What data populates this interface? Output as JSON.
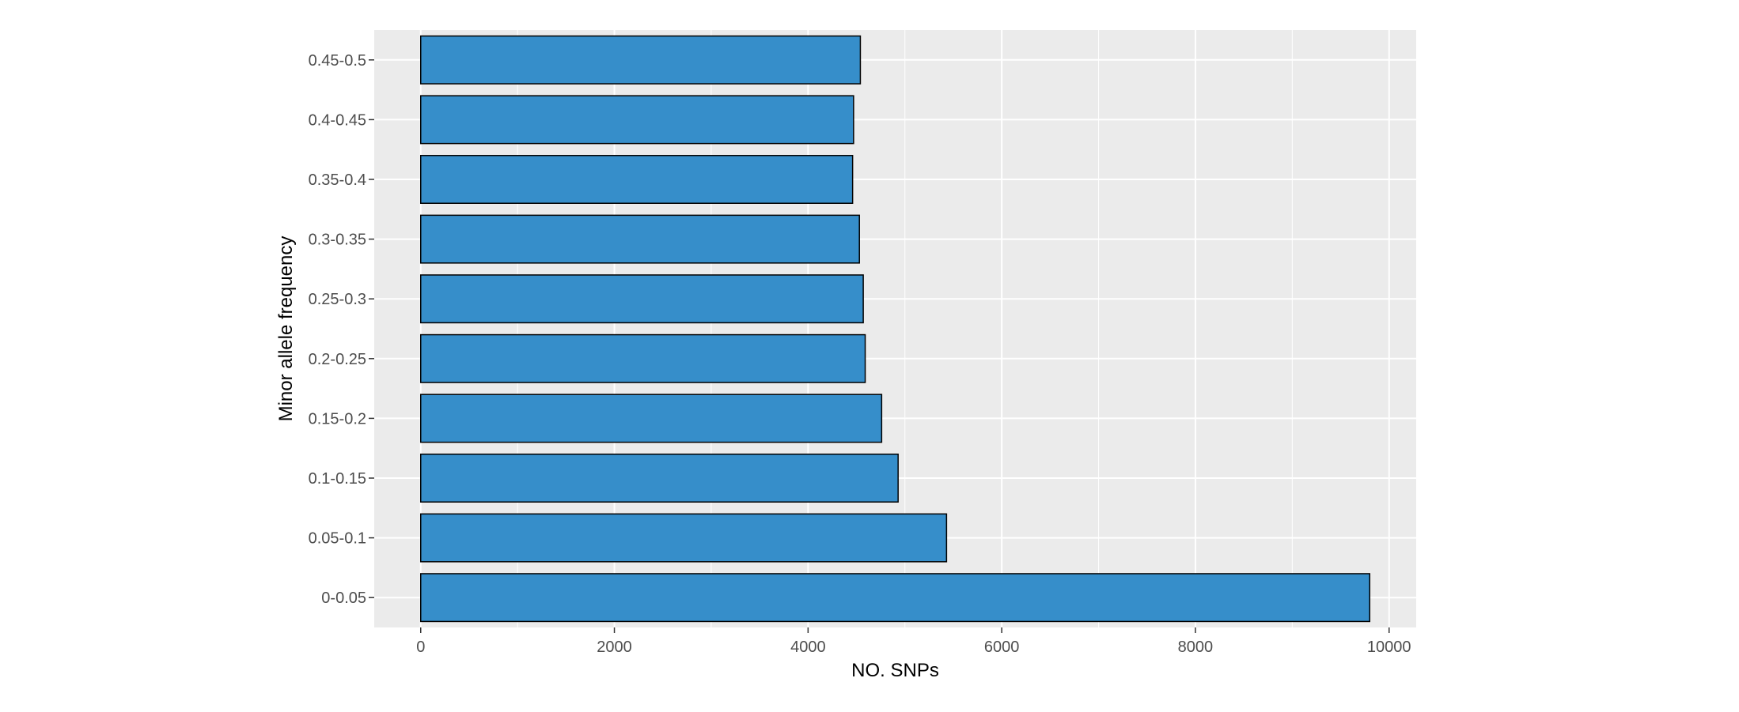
{
  "chart_data": {
    "type": "bar",
    "orientation": "horizontal",
    "categories": [
      "0-0.05",
      "0.05-0.1",
      "0.1-0.15",
      "0.15-0.2",
      "0.2-0.25",
      "0.25-0.3",
      "0.3-0.35",
      "0.35-0.4",
      "0.4-0.45",
      "0.45-0.5"
    ],
    "values": [
      9800,
      5430,
      4930,
      4760,
      4590,
      4570,
      4530,
      4460,
      4470,
      4540
    ],
    "title": "",
    "xlabel": "NO. SNPs",
    "ylabel": "Minor allele frequency",
    "xlim": [
      -480,
      10280
    ],
    "xticks": [
      0,
      2000,
      4000,
      6000,
      8000,
      10000
    ],
    "grid": true,
    "legend": "none",
    "colors": {
      "bar_fill": "#368ECA",
      "bar_stroke": "#000000",
      "panel_background": "#EBEBEB",
      "grid_major": "#FFFFFF",
      "tick_text": "#4D4D4D",
      "axis_title": "#000000"
    }
  }
}
